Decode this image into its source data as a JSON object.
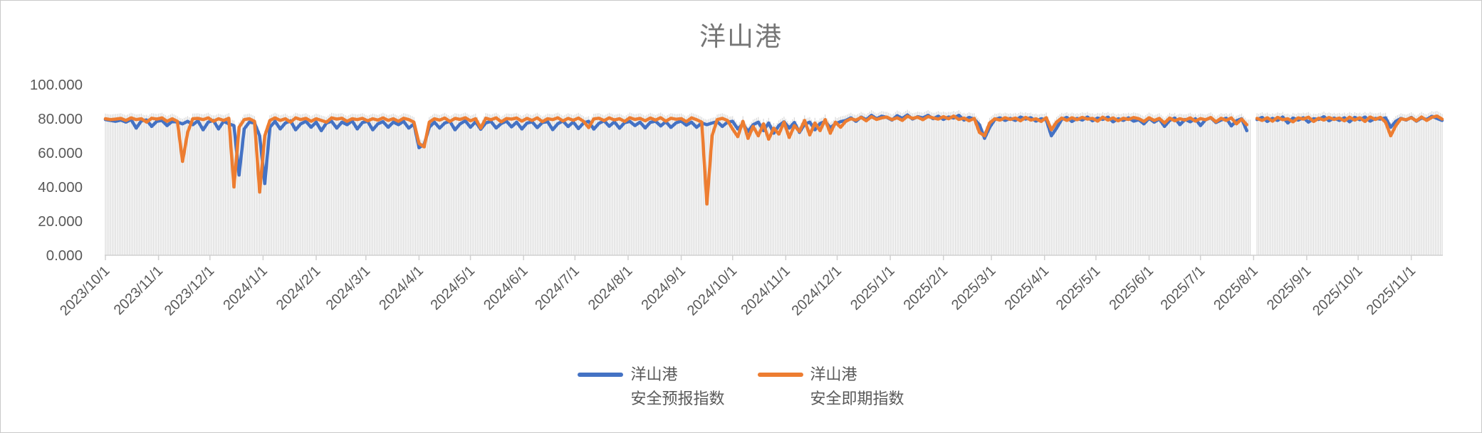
{
  "chart_data": {
    "type": "line",
    "title": "洋山港",
    "xlabel": "",
    "ylabel": "",
    "ylim": [
      0,
      100
    ],
    "y_tick_labels": [
      "0.000",
      "20.000",
      "40.000",
      "60.000",
      "80.000",
      "100.000"
    ],
    "x_tick_rotation_deg": 45,
    "gridlines": false,
    "droplines": true,
    "legend_position": "bottom",
    "start_date": "2023/10/1",
    "end_date_approx": "2025/11/19",
    "sample_interval_days": 3,
    "total_days": 780,
    "missing_data_around": "2025/8/1",
    "x_ticks": [
      {
        "label": "2023/10/1",
        "day": 0
      },
      {
        "label": "2023/11/1",
        "day": 31
      },
      {
        "label": "2023/12/1",
        "day": 61
      },
      {
        "label": "2024/1/1",
        "day": 92
      },
      {
        "label": "2024/2/1",
        "day": 123
      },
      {
        "label": "2024/3/1",
        "day": 152
      },
      {
        "label": "2024/4/1",
        "day": 183
      },
      {
        "label": "2024/5/1",
        "day": 213
      },
      {
        "label": "2024/6/1",
        "day": 244
      },
      {
        "label": "2024/7/1",
        "day": 274
      },
      {
        "label": "2024/8/1",
        "day": 305
      },
      {
        "label": "2024/9/1",
        "day": 336
      },
      {
        "label": "2024/10/1",
        "day": 366
      },
      {
        "label": "2024/11/1",
        "day": 397
      },
      {
        "label": "2024/12/1",
        "day": 427
      },
      {
        "label": "2025/1/1",
        "day": 458
      },
      {
        "label": "2025/2/1",
        "day": 489
      },
      {
        "label": "2025/3/1",
        "day": 517
      },
      {
        "label": "2025/4/1",
        "day": 548
      },
      {
        "label": "2025/5/1",
        "day": 578
      },
      {
        "label": "2025/6/1",
        "day": 609
      },
      {
        "label": "2025/7/1",
        "day": 639
      },
      {
        "label": "2025/8/1",
        "day": 670
      },
      {
        "label": "2025/9/1",
        "day": 701
      },
      {
        "label": "2025/10/1",
        "day": 731
      },
      {
        "label": "2025/11/1",
        "day": 762
      }
    ],
    "series": [
      {
        "name": "洋山港安全预报指数",
        "color": "#4472C4",
        "values": [
          79.5,
          79.0,
          78.5,
          79.2,
          78.0,
          79.5,
          74.5,
          78.8,
          79.3,
          75.5,
          78.5,
          79.0,
          76.0,
          78.5,
          78.0,
          77.0,
          78.5,
          76.5,
          78.8,
          73.5,
          78.0,
          79.0,
          74.0,
          78.5,
          77.0,
          76.0,
          47.0,
          74.0,
          78.0,
          77.5,
          70.0,
          42.0,
          75.0,
          78.5,
          74.0,
          77.5,
          78.8,
          73.5,
          77.0,
          78.5,
          75.0,
          78.0,
          73.0,
          77.5,
          78.5,
          74.5,
          78.0,
          76.5,
          78.8,
          74.0,
          77.8,
          78.5,
          73.5,
          77.0,
          78.3,
          75.0,
          78.0,
          76.5,
          78.5,
          74.5,
          77.0,
          63.0,
          65.0,
          75.0,
          78.0,
          74.5,
          77.5,
          78.5,
          73.5,
          77.0,
          78.8,
          75.0,
          78.2,
          73.8,
          77.6,
          78.4,
          74.6,
          77.2,
          78.6,
          75.2,
          78.0,
          74.0,
          77.4,
          78.2,
          74.8,
          77.8,
          78.3,
          73.6,
          77.1,
          78.7,
          75.4,
          78.1,
          74.2,
          77.5,
          78.5,
          73.9,
          77.3,
          78.8,
          75.6,
          78.2,
          74.4,
          77.7,
          78.4,
          76.0,
          78.0,
          74.6,
          77.9,
          78.5,
          75.8,
          78.3,
          74.9,
          77.6,
          78.6,
          76.2,
          78.0,
          75.0,
          77.5,
          76.5,
          77.5,
          78.3,
          75.5,
          78.0,
          78.5,
          74.0,
          77.0,
          72.5,
          76.5,
          78.0,
          73.0,
          77.5,
          71.5,
          76.0,
          78.2,
          74.5,
          77.8,
          72.0,
          76.8,
          78.0,
          73.5,
          77.2,
          78.4,
          74.8,
          77.0,
          78.3,
          79.0,
          80.5,
          78.5,
          81.0,
          79.5,
          82.0,
          80.0,
          81.5,
          80.8,
          79.2,
          81.8,
          80.2,
          82.2,
          79.8,
          81.2,
          80.5,
          82.0,
          80.0,
          81.5,
          79.6,
          81.0,
          80.4,
          82.0,
          79.2,
          80.8,
          79.8,
          76.5,
          68.5,
          75.0,
          79.5,
          80.5,
          79.0,
          80.2,
          79.0,
          81.0,
          79.8,
          80.6,
          78.6,
          80.0,
          79.4,
          70.0,
          74.5,
          79.6,
          80.8,
          78.4,
          80.2,
          79.2,
          81.0,
          78.8,
          80.4,
          79.6,
          80.9,
          78.2,
          80.0,
          79.0,
          80.5,
          78.6,
          79.4,
          77.0,
          80.2,
          78.0,
          79.8,
          75.5,
          79.0,
          80.4,
          76.5,
          79.6,
          78.2,
          80.0,
          76.0,
          79.4,
          80.6,
          77.8,
          79.2,
          80.3,
          75.8,
          78.8,
          80.0,
          73.0,
          null,
          79.5,
          80.8,
          78.4,
          80.2,
          79.0,
          81.0,
          77.5,
          80.4,
          79.2,
          80.6,
          78.0,
          80.0,
          79.6,
          81.2,
          78.8,
          80.4,
          79.0,
          80.6,
          78.2,
          80.8,
          79.4,
          81.0,
          78.6,
          80.2,
          79.8,
          80.5,
          75.0,
          78.5,
          80.2,
          79.2,
          80.8,
          78.6,
          80.4,
          79.6,
          81.4,
          80.2,
          79.0
        ]
      },
      {
        "name": "洋山港安全即期指数",
        "color": "#ED7D31",
        "values": [
          80.0,
          79.5,
          79.8,
          80.2,
          79.0,
          80.5,
          79.5,
          80.0,
          78.0,
          80.3,
          79.8,
          80.5,
          78.5,
          80.0,
          78.5,
          55.0,
          72.0,
          80.0,
          80.2,
          79.5,
          80.5,
          78.5,
          80.0,
          79.0,
          80.3,
          40.0,
          75.0,
          79.5,
          80.0,
          78.5,
          37.0,
          70.0,
          79.0,
          80.5,
          79.0,
          80.0,
          78.0,
          80.5,
          79.5,
          80.2,
          78.5,
          80.0,
          79.0,
          78.0,
          80.5,
          79.8,
          80.3,
          78.5,
          80.0,
          79.5,
          80.2,
          78.8,
          80.0,
          79.2,
          80.5,
          79.0,
          80.0,
          78.5,
          80.3,
          79.5,
          78.0,
          65.5,
          63.5,
          78.0,
          80.0,
          79.2,
          80.4,
          78.4,
          80.2,
          79.6,
          80.6,
          78.8,
          80.0,
          74.5,
          80.3,
          79.4,
          80.5,
          78.2,
          80.1,
          79.8,
          80.4,
          78.6,
          80.2,
          79.0,
          80.5,
          78.3,
          80.0,
          79.5,
          80.6,
          78.7,
          80.2,
          79.1,
          80.4,
          78.5,
          74.8,
          79.9,
          80.3,
          78.9,
          80.5,
          79.3,
          80.0,
          78.4,
          80.6,
          79.6,
          80.2,
          78.8,
          80.4,
          79.2,
          80.6,
          78.6,
          80.3,
          79.7,
          80.1,
          78.3,
          80.5,
          79.4,
          78.0,
          30.0,
          70.0,
          79.5,
          80.2,
          79.0,
          74.0,
          69.5,
          78.5,
          68.5,
          75.5,
          70.0,
          77.0,
          68.0,
          74.5,
          71.0,
          78.0,
          69.0,
          76.0,
          72.5,
          79.0,
          70.5,
          77.5,
          73.0,
          79.5,
          71.5,
          78.0,
          75.0,
          78.5,
          80.0,
          79.2,
          80.8,
          78.8,
          81.2,
          79.6,
          80.5,
          81.0,
          79.5,
          80.6,
          79.0,
          81.5,
          80.2,
          80.9,
          79.4,
          81.3,
          80.5,
          79.8,
          81.2,
          80.0,
          81.6,
          79.6,
          80.4,
          78.8,
          80.2,
          72.0,
          70.0,
          77.5,
          80.0,
          79.2,
          80.6,
          79.6,
          80.4,
          78.8,
          80.8,
          79.2,
          80.0,
          78.4,
          80.6,
          73.5,
          78.0,
          80.4,
          79.0,
          80.6,
          79.4,
          80.8,
          79.8,
          80.2,
          78.6,
          80.9,
          79.2,
          80.5,
          78.8,
          80.3,
          79.6,
          80.7,
          80.0,
          78.4,
          80.6,
          79.0,
          80.2,
          77.5,
          80.4,
          78.8,
          80.0,
          79.2,
          80.5,
          78.6,
          80.1,
          79.4,
          80.7,
          78.2,
          80.3,
          79.0,
          80.5,
          77.0,
          79.8,
          76.5,
          null,
          80.2,
          79.0,
          80.6,
          78.6,
          80.8,
          79.4,
          80.0,
          78.2,
          80.5,
          79.8,
          80.9,
          78.4,
          80.3,
          79.2,
          80.7,
          79.6,
          80.4,
          78.8,
          80.9,
          79.2,
          80.6,
          78.4,
          81.0,
          79.6,
          80.8,
          78.0,
          70.0,
          76.0,
          80.0,
          79.4,
          80.6,
          78.8,
          81.0,
          79.0,
          80.8,
          81.6,
          79.8
        ]
      }
    ]
  },
  "legend": {
    "items": [
      {
        "line1": "洋山港",
        "line2": "安全预报指数"
      },
      {
        "line1": "洋山港",
        "line2": "安全即期指数"
      }
    ]
  },
  "colors": {
    "series_forecast": "#4472C4",
    "series_spot": "#ED7D31",
    "dropline": "#D9D9D9",
    "axis_line": "#D0D0D0",
    "tick_text": "#595959",
    "title_text": "#767676",
    "frame_border": "#C9C9C9"
  }
}
